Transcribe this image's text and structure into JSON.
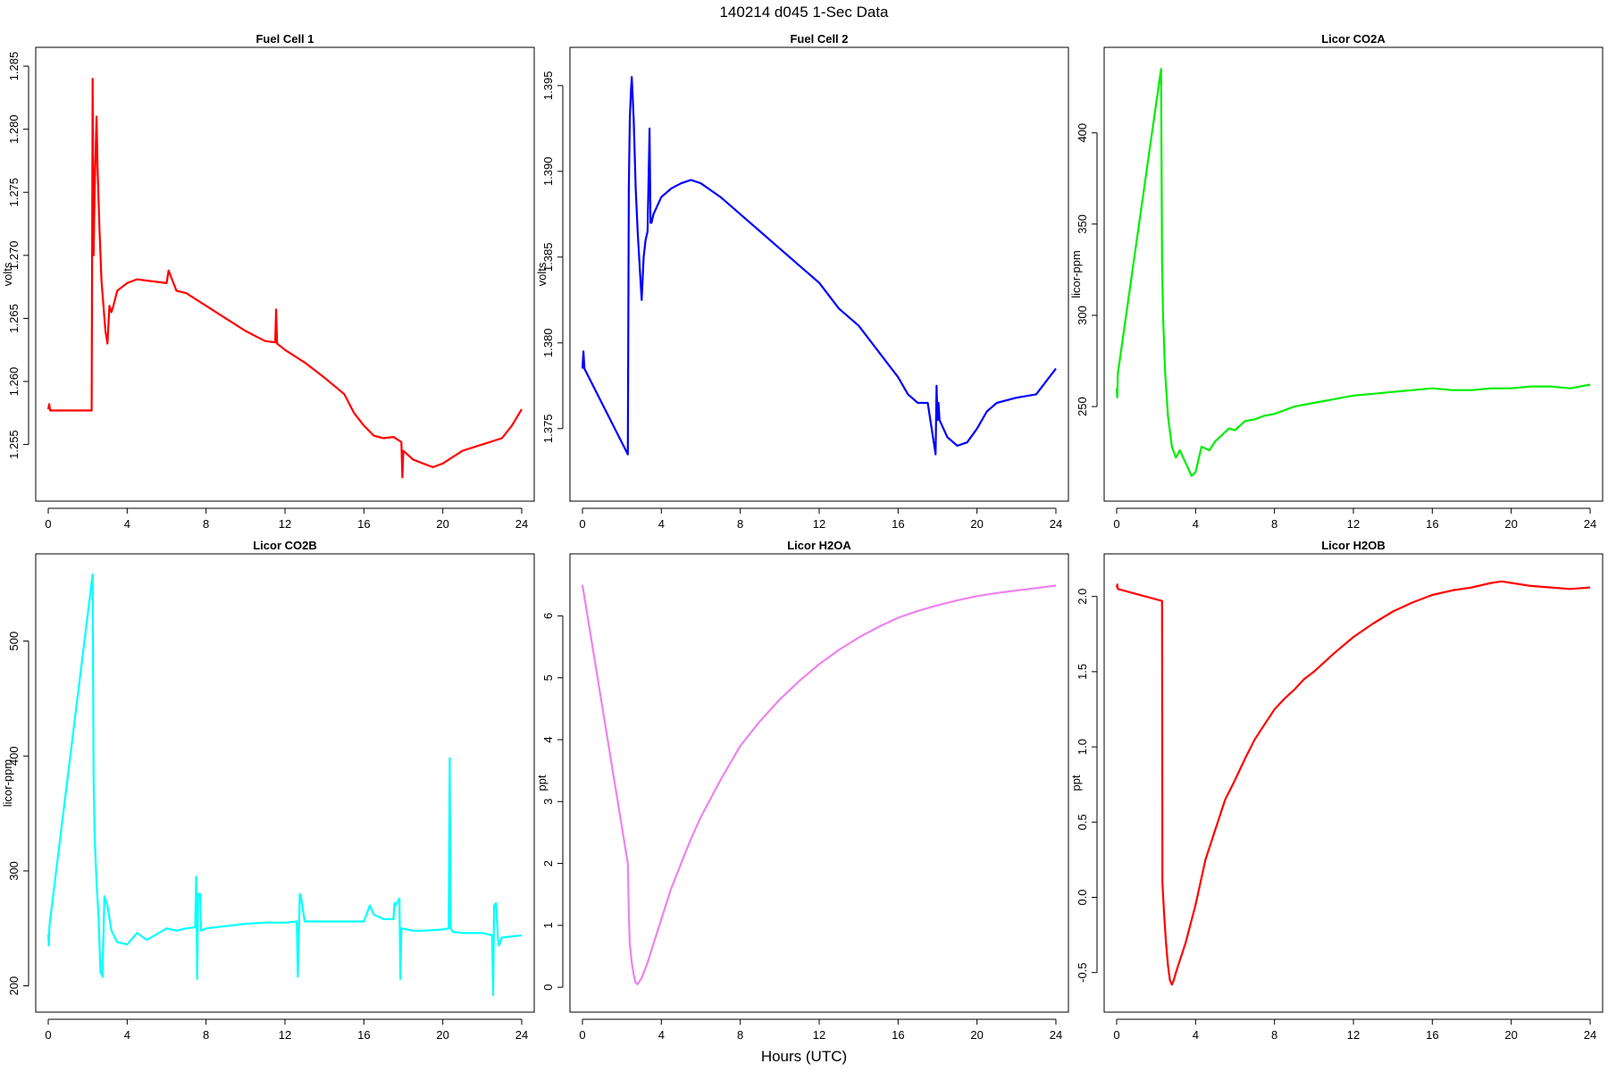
{
  "title": "140214   d045   1-Sec Data",
  "xlabel": "Hours (UTC)",
  "chart_data": [
    {
      "type": "line",
      "title": "Fuel Cell 1",
      "ylabel": "volts",
      "color": "#ff0000",
      "xlim": [
        0,
        24
      ],
      "ylim": [
        1.2515,
        1.2855
      ],
      "xticks": [
        0,
        4,
        8,
        12,
        16,
        20,
        24
      ],
      "yticks": [
        1.255,
        1.26,
        1.265,
        1.27,
        1.275,
        1.28,
        1.285
      ],
      "ytick_labels": [
        "1.255",
        "1.260",
        "1.265",
        "1.270",
        "1.275",
        "1.280",
        "1.285"
      ],
      "x": [
        0,
        0.05,
        0.1,
        2.2,
        2.25,
        2.3,
        2.35,
        2.4,
        2.45,
        2.5,
        2.6,
        2.7,
        2.8,
        2.9,
        3.0,
        3.1,
        3.2,
        3.3,
        3.5,
        4,
        4.5,
        5,
        5.5,
        6,
        6.1,
        6.5,
        7,
        8,
        9,
        10,
        11,
        11.5,
        11.55,
        11.6,
        12,
        13,
        14,
        15,
        15.5,
        16,
        16.5,
        17,
        17.5,
        17.9,
        17.95,
        18,
        18.5,
        19,
        19.5,
        20,
        20.5,
        21,
        22,
        23,
        23.5,
        24
      ],
      "y": [
        1.2578,
        1.2582,
        1.2577,
        1.2577,
        1.284,
        1.27,
        1.275,
        1.278,
        1.281,
        1.277,
        1.272,
        1.268,
        1.266,
        1.264,
        1.263,
        1.266,
        1.2655,
        1.266,
        1.2672,
        1.2678,
        1.2681,
        1.268,
        1.2679,
        1.2678,
        1.2688,
        1.2672,
        1.267,
        1.266,
        1.265,
        1.264,
        1.2632,
        1.2631,
        1.2657,
        1.263,
        1.2625,
        1.2615,
        1.2603,
        1.259,
        1.2575,
        1.2565,
        1.2557,
        1.2555,
        1.2556,
        1.2552,
        1.2524,
        1.2545,
        1.2538,
        1.2535,
        1.2532,
        1.2535,
        1.254,
        1.2545,
        1.255,
        1.2555,
        1.2565,
        1.2578
      ]
    },
    {
      "type": "line",
      "title": "Fuel Cell 2",
      "ylabel": "volts",
      "color": "#0000ff",
      "xlim": [
        0,
        24
      ],
      "ylim": [
        1.3715,
        1.3965
      ],
      "xticks": [
        0,
        4,
        8,
        12,
        16,
        20,
        24
      ],
      "yticks": [
        1.375,
        1.38,
        1.385,
        1.39,
        1.395
      ],
      "ytick_labels": [
        "1.375",
        "1.380",
        "1.385",
        "1.390",
        "1.395"
      ],
      "x": [
        0,
        0.05,
        0.1,
        2.3,
        2.35,
        2.4,
        2.45,
        2.5,
        2.6,
        2.7,
        2.8,
        2.9,
        3.0,
        3.1,
        3.2,
        3.3,
        3.4,
        3.45,
        3.5,
        3.6,
        4,
        4.5,
        5,
        5.5,
        6,
        7,
        8,
        9,
        10,
        11,
        12,
        13,
        14,
        15,
        16,
        16.5,
        17,
        17.5,
        17.9,
        17.95,
        18,
        18.05,
        18.1,
        18.5,
        19,
        19.5,
        20,
        20.5,
        21,
        22,
        23,
        24
      ],
      "y": [
        1.3785,
        1.3795,
        1.3785,
        1.3735,
        1.389,
        1.393,
        1.3945,
        1.3955,
        1.393,
        1.389,
        1.3865,
        1.3845,
        1.3825,
        1.385,
        1.386,
        1.3865,
        1.3925,
        1.387,
        1.387,
        1.3875,
        1.3885,
        1.389,
        1.3893,
        1.3895,
        1.3893,
        1.3885,
        1.3875,
        1.3865,
        1.3855,
        1.3845,
        1.3835,
        1.382,
        1.381,
        1.3795,
        1.378,
        1.377,
        1.3765,
        1.3765,
        1.3735,
        1.3775,
        1.3755,
        1.3765,
        1.3755,
        1.3745,
        1.374,
        1.3742,
        1.375,
        1.376,
        1.3765,
        1.3768,
        1.377,
        1.3785
      ]
    },
    {
      "type": "line",
      "title": "Licor CO2A",
      "ylabel": "licor-ppm",
      "color": "#00ee00",
      "xlim": [
        0,
        24
      ],
      "ylim": [
        205,
        440
      ],
      "xticks": [
        0,
        4,
        8,
        12,
        16,
        20,
        24
      ],
      "yticks": [
        250,
        300,
        350,
        400
      ],
      "ytick_labels": [
        "250",
        "300",
        "350",
        "400"
      ],
      "x": [
        0,
        0.03,
        0.06,
        2.25,
        2.3,
        2.35,
        2.45,
        2.6,
        2.8,
        3.0,
        3.2,
        3.5,
        3.8,
        4.0,
        4.3,
        4.7,
        5.0,
        5.3,
        5.7,
        6.0,
        6.5,
        7,
        7.5,
        8,
        9,
        10,
        11,
        12,
        13,
        14,
        15,
        16,
        17,
        18,
        19,
        20,
        21,
        22,
        23,
        24
      ],
      "y": [
        260,
        255,
        268,
        435,
        330,
        300,
        270,
        245,
        228,
        222,
        226,
        219,
        212,
        214,
        228,
        226,
        231,
        234,
        238,
        237,
        242,
        243,
        245,
        246,
        250,
        252,
        254,
        256,
        257,
        258,
        259,
        260,
        259,
        259,
        260,
        260,
        261,
        261,
        260,
        262
      ]
    },
    {
      "type": "line",
      "title": "Licor CO2B",
      "ylabel": "licor-ppm",
      "color": "#00ffff",
      "xlim": [
        0,
        24
      ],
      "ylim": [
        188,
        565
      ],
      "xticks": [
        0,
        4,
        8,
        12,
        16,
        20,
        24
      ],
      "yticks": [
        200,
        300,
        400,
        500
      ],
      "ytick_labels": [
        "200",
        "300",
        "400",
        "500"
      ],
      "x": [
        0,
        0.03,
        0.06,
        2.25,
        2.3,
        2.35,
        2.45,
        2.55,
        2.65,
        2.75,
        2.85,
        3.0,
        3.2,
        3.5,
        4.0,
        4.5,
        5.0,
        5.5,
        6.0,
        6.5,
        7.0,
        7.45,
        7.5,
        7.55,
        7.6,
        7.7,
        7.75,
        8.0,
        9,
        10,
        11,
        12,
        12.6,
        12.65,
        12.75,
        12.8,
        13,
        14,
        15,
        16,
        16.3,
        16.5,
        17,
        17.5,
        17.55,
        17.6,
        17.8,
        17.85,
        17.9,
        18.5,
        19,
        20,
        20.3,
        20.35,
        20.4,
        20.5,
        21,
        22,
        22.5,
        22.55,
        22.6,
        22.7,
        22.8,
        22.85,
        23,
        24
      ],
      "y": [
        245,
        235,
        252,
        558,
        380,
        330,
        290,
        260,
        212,
        208,
        278,
        270,
        248,
        238,
        236,
        246,
        240,
        245,
        250,
        248,
        250,
        251,
        295,
        206,
        280,
        280,
        248,
        250,
        252,
        254,
        255,
        255,
        256,
        208,
        280,
        278,
        256,
        256,
        256,
        256,
        270,
        262,
        258,
        258,
        272,
        270,
        276,
        206,
        250,
        248,
        248,
        249,
        250,
        398,
        250,
        247,
        246,
        246,
        244,
        192,
        270,
        272,
        240,
        235,
        242,
        244
      ]
    },
    {
      "type": "line",
      "title": "Licor H2OA",
      "ylabel": "ppt",
      "color": "#ee82ee",
      "xlim": [
        0,
        24
      ],
      "ylim": [
        -0.2,
        6.8
      ],
      "xticks": [
        0,
        4,
        8,
        12,
        16,
        20,
        24
      ],
      "yticks": [
        0,
        1,
        2,
        3,
        4,
        5,
        6
      ],
      "ytick_labels": [
        "0",
        "1",
        "2",
        "3",
        "4",
        "5",
        "6"
      ],
      "x": [
        0,
        2.3,
        2.35,
        2.4,
        2.5,
        2.6,
        2.7,
        2.8,
        3.0,
        3.3,
        3.6,
        4.0,
        4.5,
        5.0,
        5.5,
        6.0,
        7,
        8,
        9,
        10,
        11,
        12,
        13,
        14,
        15,
        16,
        17,
        18,
        19,
        20,
        21,
        22,
        23,
        24
      ],
      "y": [
        6.5,
        2.0,
        1.2,
        0.7,
        0.4,
        0.2,
        0.07,
        0.05,
        0.15,
        0.4,
        0.7,
        1.1,
        1.6,
        2.0,
        2.4,
        2.75,
        3.35,
        3.9,
        4.3,
        4.65,
        4.95,
        5.22,
        5.45,
        5.65,
        5.82,
        5.97,
        6.08,
        6.17,
        6.25,
        6.32,
        6.37,
        6.41,
        6.45,
        6.49
      ]
    },
    {
      "type": "line",
      "title": "Licor H2OB",
      "ylabel": "ppt",
      "color": "#ff0000",
      "xlim": [
        0,
        24
      ],
      "ylim": [
        -0.68,
        2.2
      ],
      "xticks": [
        0,
        4,
        8,
        12,
        16,
        20,
        24
      ],
      "yticks": [
        -0.5,
        0,
        0.5,
        1,
        1.5,
        2
      ],
      "ytick_labels": [
        "-0.5",
        "0.0",
        "0.5",
        "1.0",
        "1.5",
        "2.0"
      ],
      "x": [
        0,
        0.03,
        0.06,
        2.3,
        2.32,
        2.4,
        2.5,
        2.6,
        2.7,
        2.8,
        2.9,
        3.0,
        3.2,
        3.5,
        4.0,
        4.5,
        5.0,
        5.5,
        6.0,
        6.5,
        7.0,
        7.5,
        8.0,
        8.5,
        9.0,
        9.5,
        10,
        11,
        12,
        13,
        14,
        15,
        16,
        17,
        18,
        19,
        19.5,
        20,
        21,
        22,
        23,
        24
      ],
      "y": [
        2.06,
        2.08,
        2.05,
        1.97,
        0.1,
        -0.1,
        -0.3,
        -0.45,
        -0.55,
        -0.58,
        -0.55,
        -0.5,
        -0.42,
        -0.3,
        -0.05,
        0.25,
        0.45,
        0.65,
        0.78,
        0.92,
        1.05,
        1.15,
        1.25,
        1.32,
        1.38,
        1.45,
        1.5,
        1.62,
        1.73,
        1.82,
        1.9,
        1.96,
        2.01,
        2.04,
        2.06,
        2.09,
        2.1,
        2.09,
        2.07,
        2.06,
        2.05,
        2.06
      ]
    }
  ]
}
